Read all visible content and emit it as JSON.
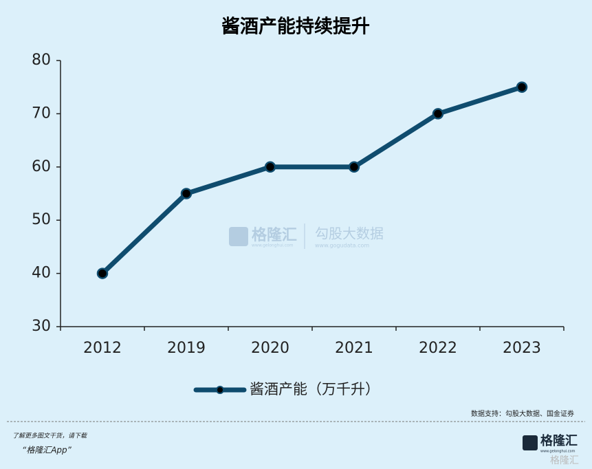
{
  "chart_data": {
    "type": "line",
    "title": "酱酒产能持续提升",
    "categories": [
      "2012",
      "2019",
      "2020",
      "2021",
      "2022",
      "2023"
    ],
    "series": [
      {
        "name": "酱酒产能（万千升）",
        "color": "#0f4c6e",
        "values": [
          40,
          55,
          60,
          60,
          70,
          75
        ]
      }
    ],
    "ylim": [
      30,
      80
    ],
    "yticks": [
      30,
      40,
      50,
      60,
      70,
      80
    ],
    "grid": false,
    "source": "数据支持：勾股大数据、国金证券"
  },
  "watermark": {
    "brand": "格隆汇",
    "brand_url": "www.gelonghui.com",
    "partner": "勾股大数据",
    "partner_url": "www.gogudata.com"
  },
  "footer": {
    "line1": "了解更多图文干货，请下载",
    "line2": "“格隆汇App”",
    "logo": "格隆汇",
    "logo_url": "www.gelonghui.com",
    "logo_watermark": "格隆汇"
  }
}
